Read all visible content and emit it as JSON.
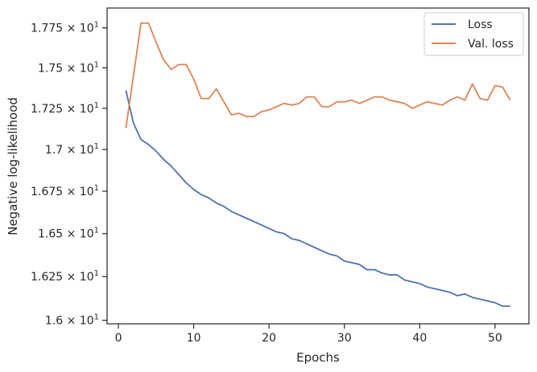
{
  "chart_data": {
    "type": "line",
    "title": "",
    "xlabel": "Epochs",
    "ylabel": "Negative log-likelihood",
    "xlim": [
      -1.5,
      54.5
    ],
    "ylim": [
      15.98,
      17.875
    ],
    "y_scale": "log",
    "xticks": [
      0,
      10,
      20,
      30,
      40,
      50
    ],
    "yticks": [
      {
        "value": 16.0,
        "mantissa": "1.6"
      },
      {
        "value": 16.25,
        "mantissa": "1.625"
      },
      {
        "value": 16.5,
        "mantissa": "1.65"
      },
      {
        "value": 16.75,
        "mantissa": "1.675"
      },
      {
        "value": 17.0,
        "mantissa": "1.7"
      },
      {
        "value": 17.25,
        "mantissa": "1.725"
      },
      {
        "value": 17.5,
        "mantissa": "1.75"
      },
      {
        "value": 17.75,
        "mantissa": "1.775"
      }
    ],
    "tick_label_suffix": "× 10",
    "tick_label_exponent": "1",
    "grid": false,
    "legend_position": "top-right",
    "x": [
      1,
      2,
      3,
      4,
      5,
      6,
      7,
      8,
      9,
      10,
      11,
      12,
      13,
      14,
      15,
      16,
      17,
      18,
      19,
      20,
      21,
      22,
      23,
      24,
      25,
      26,
      27,
      28,
      29,
      30,
      31,
      32,
      33,
      34,
      35,
      36,
      37,
      38,
      39,
      40,
      41,
      42,
      43,
      44,
      45,
      46,
      47,
      48,
      49,
      50,
      51,
      52
    ],
    "series": [
      {
        "name": "Loss",
        "color": "#4c72b0",
        "values": [
          17.36,
          17.16,
          17.06,
          17.03,
          16.99,
          16.94,
          16.9,
          16.85,
          16.8,
          16.76,
          16.73,
          16.71,
          16.68,
          16.66,
          16.63,
          16.61,
          16.59,
          16.57,
          16.55,
          16.53,
          16.51,
          16.5,
          16.47,
          16.46,
          16.44,
          16.42,
          16.4,
          16.38,
          16.37,
          16.34,
          16.33,
          16.32,
          16.29,
          16.29,
          16.27,
          16.26,
          16.26,
          16.23,
          16.22,
          16.21,
          16.19,
          16.18,
          16.17,
          16.16,
          16.14,
          16.15,
          16.13,
          16.12,
          16.11,
          16.1,
          16.08,
          16.08
        ]
      },
      {
        "name": "Val. loss",
        "color": "#dd8452",
        "values": [
          17.13,
          17.45,
          17.78,
          17.78,
          17.66,
          17.55,
          17.49,
          17.52,
          17.52,
          17.43,
          17.31,
          17.31,
          17.37,
          17.29,
          17.21,
          17.22,
          17.2,
          17.2,
          17.23,
          17.24,
          17.26,
          17.28,
          17.27,
          17.28,
          17.32,
          17.32,
          17.26,
          17.26,
          17.29,
          17.29,
          17.3,
          17.28,
          17.3,
          17.32,
          17.32,
          17.3,
          17.29,
          17.28,
          17.25,
          17.27,
          17.29,
          17.28,
          17.27,
          17.3,
          17.32,
          17.3,
          17.4,
          17.31,
          17.3,
          17.39,
          17.38,
          17.3
        ]
      }
    ]
  }
}
